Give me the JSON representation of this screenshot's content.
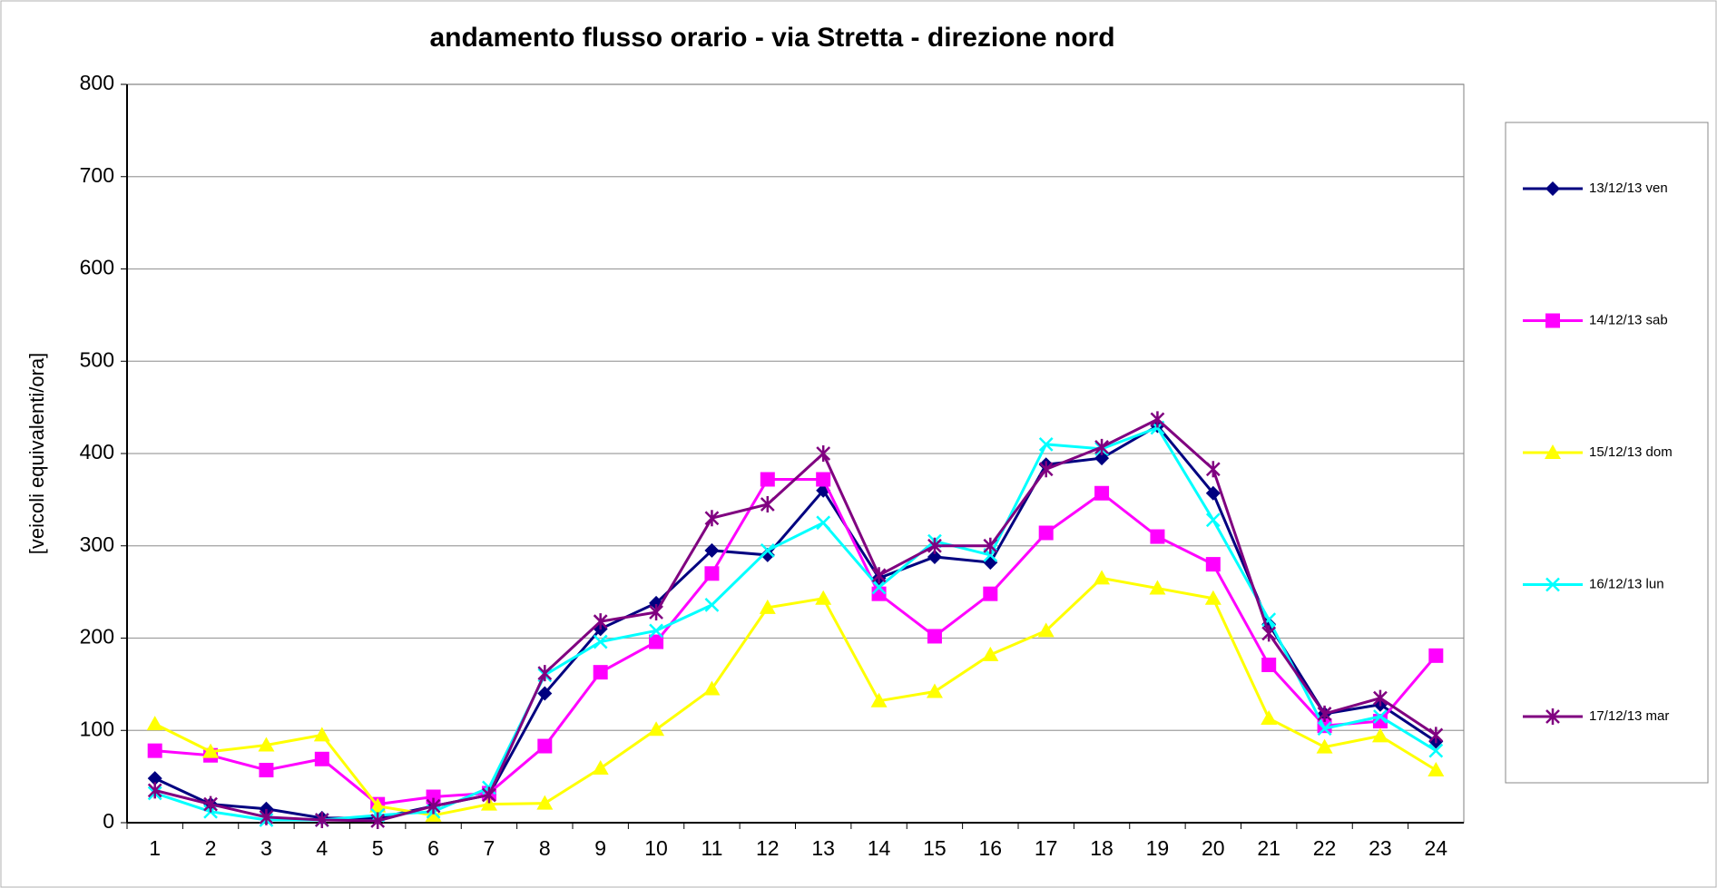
{
  "chart_data": {
    "type": "line",
    "title": "andamento flusso orario -  via Stretta - direzione nord",
    "y_label": "[veicoli equivalenti/ora]",
    "categories": [
      1,
      2,
      3,
      4,
      5,
      6,
      7,
      8,
      9,
      10,
      11,
      12,
      13,
      14,
      15,
      16,
      17,
      18,
      19,
      20,
      21,
      22,
      23,
      24
    ],
    "series": [
      {
        "name": "13/12/13 ven",
        "color": "#000080",
        "marker": "diamond",
        "values": [
          48,
          20,
          15,
          5,
          5,
          18,
          30,
          140,
          210,
          238,
          295,
          290,
          360,
          265,
          288,
          282,
          388,
          395,
          430,
          357,
          215,
          118,
          128,
          88
        ]
      },
      {
        "name": "14/12/13 sab",
        "color": "#ff00ff",
        "marker": "square",
        "values": [
          78,
          73,
          57,
          69,
          20,
          28,
          32,
          83,
          163,
          196,
          270,
          372,
          372,
          248,
          202,
          248,
          314,
          357,
          310,
          280,
          171,
          105,
          110,
          181
        ]
      },
      {
        "name": "15/12/13 dom",
        "color": "#ffff00",
        "marker": "triangle",
        "values": [
          107,
          77,
          84,
          95,
          18,
          8,
          20,
          21,
          59,
          101,
          145,
          233,
          243,
          132,
          142,
          182,
          208,
          265,
          254,
          243,
          113,
          82,
          94,
          57
        ]
      },
      {
        "name": "16/12/13 lun",
        "color": "#00ffff",
        "marker": "x",
        "values": [
          32,
          12,
          3,
          3,
          8,
          12,
          38,
          160,
          196,
          208,
          236,
          295,
          325,
          255,
          305,
          290,
          410,
          405,
          428,
          328,
          220,
          102,
          115,
          78
        ]
      },
      {
        "name": "17/12/13 mar",
        "color": "#800080",
        "marker": "asterisk",
        "values": [
          35,
          20,
          6,
          3,
          2,
          18,
          30,
          162,
          218,
          228,
          330,
          345,
          400,
          268,
          300,
          300,
          383,
          407,
          437,
          383,
          205,
          118,
          135,
          95
        ]
      }
    ],
    "ylim": [
      0,
      800
    ],
    "yticks": [
      0,
      100,
      200,
      300,
      400,
      500,
      600,
      700,
      800
    ],
    "grid": true,
    "legend": "right"
  }
}
